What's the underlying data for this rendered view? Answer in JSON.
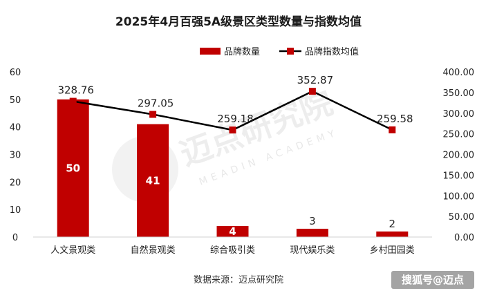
{
  "chart_data": {
    "type": "bar",
    "title": "2025年4月百强5A级景区类型数量与指数均值",
    "categories": [
      "人文景观类",
      "自然景观类",
      "综合吸引类",
      "现代娱乐类",
      "乡村田园类"
    ],
    "series": [
      {
        "name": "品牌数量",
        "type": "bar",
        "axis": "left",
        "color": "#c00000",
        "values": [
          50,
          41,
          4,
          3,
          2
        ],
        "labels": [
          "50",
          "41",
          "4",
          "3",
          "2"
        ]
      },
      {
        "name": "品牌指数均值",
        "type": "line",
        "axis": "right",
        "color": "#000000",
        "marker_color": "#c00000",
        "values": [
          328.76,
          297.05,
          259.18,
          352.87,
          259.58
        ],
        "labels": [
          "328.76",
          "297.05",
          "259.18",
          "352.87",
          "259.58"
        ]
      }
    ],
    "y_left": {
      "min": 0,
      "max": 60,
      "ticks": [
        "0",
        "10",
        "20",
        "30",
        "40",
        "50",
        "60"
      ]
    },
    "y_right": {
      "min": 0,
      "max": 400,
      "ticks": [
        "0.00",
        "50.00",
        "100.00",
        "150.00",
        "200.00",
        "250.00",
        "300.00",
        "350.00",
        "400.00"
      ]
    },
    "legend": "top-right",
    "grid": false
  },
  "source": "数据来源：迈点研究院",
  "watermark": {
    "cn": "迈点研究院",
    "en": "MEADIN ACADEMY"
  },
  "credit": "搜狐号@迈点"
}
